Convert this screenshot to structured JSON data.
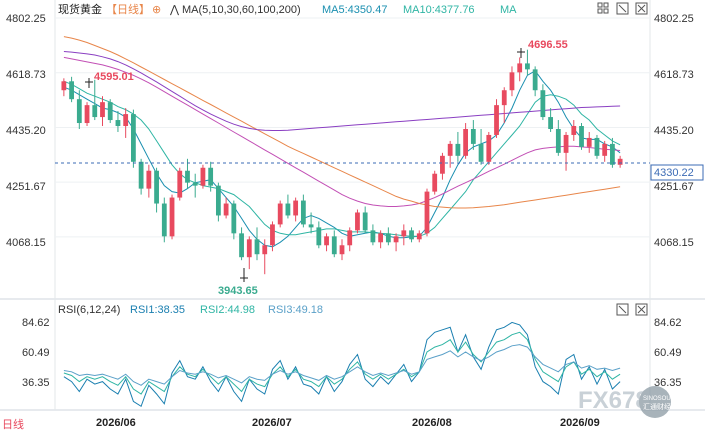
{
  "header": {
    "instrument": "现货黄金",
    "period": "【日线】",
    "ma_label": "MA(5,10,30,60,100,200)",
    "ma5": "MA5:4350.47",
    "ma10": "MA10:4377.76",
    "ma_extra": "MA"
  },
  "rsi_header": {
    "label": "RSI(6,12,24)",
    "rsi1": "RSI1:38.35",
    "rsi2": "RSI2:44.98",
    "rsi3": "RSI3:49.18"
  },
  "price_axis": [
    "4802.25",
    "4618.73",
    "4435.20",
    "4251.67",
    "4068.15"
  ],
  "rsi_axis": [
    "84.62",
    "60.49",
    "36.35"
  ],
  "left_bottom_label": "日线",
  "current_price": "4330.22",
  "annotations": {
    "high_1": "4595.01",
    "low": "3943.65",
    "high_2": "4696.55"
  },
  "date_labels": [
    "2026/06",
    "2026/07",
    "2026/08",
    "2026/09"
  ],
  "watermark": {
    "brand": "FX678",
    "line1": "SINOSOUND",
    "line2": "汇通财经"
  },
  "colors": {
    "up": "#e84a5f",
    "down": "#3aab8f",
    "ma5": "#1a8fb0",
    "ma10": "#2fb5a4",
    "ma30": "#c24fb5",
    "ma60": "#e8864a",
    "ma100": "#8a3fc2",
    "ma200": "#f0a070",
    "rsi1": "#1a7fb0",
    "rsi2": "#2fb5a4",
    "rsi3": "#5aa0c8",
    "current": "#3b6bb5"
  },
  "chart_data": {
    "type": "candlestick",
    "y_range": [
      3890,
      4802.25
    ],
    "rsi_range": [
      15,
      92
    ],
    "candles": [
      [
        4560,
        4600,
        4540,
        4590
      ],
      [
        4590,
        4605,
        4520,
        4530
      ],
      [
        4530,
        4560,
        4430,
        4450
      ],
      [
        4450,
        4520,
        4440,
        4510
      ],
      [
        4510,
        4595,
        4460,
        4470
      ],
      [
        4470,
        4540,
        4440,
        4520
      ],
      [
        4520,
        4530,
        4450,
        4460
      ],
      [
        4460,
        4490,
        4420,
        4440
      ],
      [
        4440,
        4500,
        4400,
        4480
      ],
      [
        4480,
        4495,
        4300,
        4320
      ],
      [
        4320,
        4330,
        4210,
        4230
      ],
      [
        4230,
        4310,
        4200,
        4290
      ],
      [
        4290,
        4300,
        4150,
        4180
      ],
      [
        4180,
        4200,
        4050,
        4070
      ],
      [
        4070,
        4210,
        4060,
        4200
      ],
      [
        4200,
        4300,
        4190,
        4290
      ],
      [
        4290,
        4330,
        4230,
        4250
      ],
      [
        4250,
        4280,
        4200,
        4240
      ],
      [
        4240,
        4310,
        4230,
        4300
      ],
      [
        4300,
        4320,
        4220,
        4240
      ],
      [
        4240,
        4250,
        4120,
        4140
      ],
      [
        4140,
        4200,
        4130,
        4180
      ],
      [
        4180,
        4190,
        4060,
        4080
      ],
      [
        4080,
        4100,
        3990,
        4000
      ],
      [
        4000,
        4070,
        3960,
        4060
      ],
      [
        4060,
        4100,
        3990,
        4010
      ],
      [
        4010,
        4060,
        3943,
        4040
      ],
      [
        4040,
        4120,
        4020,
        4110
      ],
      [
        4110,
        4190,
        4100,
        4180
      ],
      [
        4180,
        4210,
        4130,
        4140
      ],
      [
        4140,
        4200,
        4120,
        4190
      ],
      [
        4190,
        4210,
        4100,
        4110
      ],
      [
        4110,
        4150,
        4080,
        4100
      ],
      [
        4100,
        4120,
        4030,
        4040
      ],
      [
        4040,
        4080,
        4020,
        4070
      ],
      [
        4070,
        4090,
        4000,
        4010
      ],
      [
        4010,
        4060,
        3990,
        4040
      ],
      [
        4040,
        4100,
        4020,
        4090
      ],
      [
        4090,
        4160,
        4080,
        4150
      ],
      [
        4150,
        4170,
        4080,
        4090
      ],
      [
        4090,
        4110,
        4040,
        4050
      ],
      [
        4050,
        4090,
        4030,
        4080
      ],
      [
        4080,
        4100,
        4040,
        4050
      ],
      [
        4050,
        4080,
        4020,
        4070
      ],
      [
        4070,
        4110,
        4040,
        4090
      ],
      [
        4090,
        4100,
        4050,
        4060
      ],
      [
        4060,
        4090,
        4050,
        4080
      ],
      [
        4080,
        4230,
        4070,
        4220
      ],
      [
        4220,
        4290,
        4210,
        4280
      ],
      [
        4280,
        4350,
        4260,
        4340
      ],
      [
        4340,
        4390,
        4300,
        4380
      ],
      [
        4380,
        4420,
        4320,
        4340
      ],
      [
        4340,
        4450,
        4330,
        4430
      ],
      [
        4430,
        4460,
        4360,
        4380
      ],
      [
        4380,
        4430,
        4310,
        4320
      ],
      [
        4320,
        4420,
        4310,
        4410
      ],
      [
        4410,
        4530,
        4400,
        4510
      ],
      [
        4510,
        4570,
        4450,
        4560
      ],
      [
        4560,
        4640,
        4540,
        4620
      ],
      [
        4620,
        4670,
        4590,
        4650
      ],
      [
        4650,
        4696,
        4610,
        4630
      ],
      [
        4630,
        4640,
        4540,
        4560
      ],
      [
        4560,
        4580,
        4460,
        4470
      ],
      [
        4470,
        4500,
        4420,
        4430
      ],
      [
        4430,
        4460,
        4340,
        4350
      ],
      [
        4350,
        4420,
        4290,
        4410
      ],
      [
        4410,
        4460,
        4390,
        4440
      ],
      [
        4440,
        4450,
        4360,
        4370
      ],
      [
        4370,
        4420,
        4350,
        4400
      ],
      [
        4400,
        4410,
        4330,
        4340
      ],
      [
        4340,
        4390,
        4320,
        4380
      ],
      [
        4380,
        4400,
        4300,
        4310
      ],
      [
        4310,
        4340,
        4300,
        4330
      ]
    ],
    "ma_series": [
      {
        "key": "ma5",
        "values": [
          4570,
          4560,
          4545,
          4530,
          4515,
          4500,
          4495,
          4485,
          4470,
          4430,
          4380,
          4330,
          4280,
          4240,
          4220,
          4215,
          4230,
          4250,
          4255,
          4260,
          4230,
          4200,
          4170,
          4130,
          4090,
          4060,
          4040,
          4035,
          4050,
          4070,
          4100,
          4130,
          4140,
          4130,
          4115,
          4100,
          4080,
          4070,
          4075,
          4080,
          4085,
          4080,
          4070,
          4065,
          4065,
          4068,
          4070,
          4100,
          4150,
          4200,
          4260,
          4310,
          4350,
          4370,
          4380,
          4390,
          4410,
          4450,
          4500,
          4560,
          4610,
          4625,
          4590,
          4560,
          4520,
          4470,
          4430,
          4400,
          4395,
          4395,
          4380,
          4370,
          4350
        ]
      },
      {
        "key": "ma10",
        "values": [
          4590,
          4580,
          4565,
          4550,
          4540,
          4530,
          4520,
          4505,
          4495,
          4480,
          4460,
          4430,
          4390,
          4350,
          4310,
          4280,
          4260,
          4250,
          4240,
          4235,
          4230,
          4220,
          4210,
          4190,
          4170,
          4140,
          4110,
          4090,
          4080,
          4075,
          4075,
          4080,
          4085,
          4090,
          4095,
          4095,
          4090,
          4085,
          4085,
          4085,
          4082,
          4080,
          4078,
          4075,
          4072,
          4070,
          4070,
          4080,
          4100,
          4130,
          4160,
          4190,
          4220,
          4260,
          4290,
          4320,
          4350,
          4380,
          4410,
          4440,
          4480,
          4520,
          4540,
          4545,
          4540,
          4530,
          4510,
          4480,
          4460,
          4430,
          4410,
          4390,
          4377
        ]
      },
      {
        "key": "ma30",
        "values": [
          4670,
          4665,
          4660,
          4655,
          4650,
          4645,
          4638,
          4630,
          4620,
          4610,
          4598,
          4585,
          4570,
          4555,
          4540,
          4525,
          4510,
          4495,
          4480,
          4465,
          4450,
          4435,
          4420,
          4405,
          4390,
          4375,
          4360,
          4345,
          4330,
          4315,
          4300,
          4285,
          4270,
          4255,
          4240,
          4225,
          4210,
          4198,
          4188,
          4180,
          4175,
          4172,
          4170,
          4170,
          4172,
          4175,
          4180,
          4190,
          4200,
          4212,
          4225,
          4238,
          4250,
          4262,
          4275,
          4288,
          4300,
          4312,
          4325,
          4338,
          4350,
          4360,
          4365,
          4368,
          4370,
          4372,
          4372,
          4370,
          4368,
          4365,
          4362,
          4360,
          4358
        ]
      },
      {
        "key": "ma60",
        "values": [
          4740,
          4735,
          4728,
          4720,
          4710,
          4700,
          4690,
          4678,
          4665,
          4652,
          4638,
          4624,
          4610,
          4596,
          4582,
          4568,
          4554,
          4540,
          4526,
          4512,
          4498,
          4484,
          4470,
          4456,
          4442,
          4428,
          4414,
          4400,
          4386,
          4372,
          4360,
          4348,
          4336,
          4324,
          4312,
          4300,
          4288,
          4276,
          4264,
          4252,
          4240,
          4228,
          4216,
          4204,
          4195,
          4188,
          4180,
          4175,
          4170,
          4168,
          4166,
          4165,
          4165,
          4166,
          4168,
          4170,
          4173,
          4176,
          4180,
          4184,
          4188,
          4192,
          4196,
          4200,
          4204,
          4208,
          4212,
          4216,
          4220,
          4224,
          4228,
          4232,
          4236
        ]
      },
      {
        "key": "ma100",
        "values": [
          4690,
          4688,
          4685,
          4682,
          4678,
          4672,
          4665,
          4656,
          4645,
          4632,
          4618,
          4603,
          4588,
          4572,
          4556,
          4540,
          4524,
          4508,
          4494,
          4480,
          4468,
          4456,
          4446,
          4438,
          4432,
          4428,
          4426,
          4425,
          4425,
          4426,
          4428,
          4430,
          4432,
          4434,
          4436,
          4438,
          4440,
          4442,
          4444,
          4446,
          4448,
          4450,
          4452,
          4454,
          4456,
          4458,
          4460,
          4462,
          4464,
          4466,
          4468,
          4470,
          4472,
          4474,
          4476,
          4478,
          4480,
          4482,
          4484,
          4486,
          4488,
          4490,
          4492,
          4494,
          4496,
          4498,
          4500,
          4502,
          4503,
          4504,
          4505,
          4506,
          4507
        ]
      }
    ],
    "rsi_series": [
      {
        "key": "rsi1",
        "values": [
          42,
          38,
          30,
          40,
          36,
          38,
          32,
          28,
          40,
          22,
          18,
          35,
          28,
          20,
          45,
          55,
          42,
          40,
          50,
          38,
          30,
          42,
          30,
          22,
          40,
          32,
          28,
          48,
          55,
          40,
          50,
          36,
          34,
          28,
          42,
          30,
          38,
          52,
          60,
          40,
          34,
          42,
          36,
          44,
          52,
          38,
          46,
          72,
          78,
          80,
          82,
          62,
          76,
          58,
          48,
          66,
          80,
          82,
          86,
          84,
          76,
          50,
          38,
          34,
          28,
          56,
          60,
          40,
          50,
          36,
          48,
          32,
          38
        ]
      },
      {
        "key": "rsi2",
        "values": [
          45,
          43,
          38,
          42,
          40,
          42,
          38,
          35,
          42,
          32,
          28,
          38,
          34,
          30,
          42,
          50,
          44,
          42,
          48,
          42,
          36,
          42,
          36,
          30,
          40,
          36,
          34,
          44,
          50,
          42,
          48,
          40,
          38,
          34,
          42,
          36,
          40,
          48,
          54,
          44,
          40,
          44,
          40,
          44,
          48,
          42,
          46,
          62,
          66,
          68,
          72,
          62,
          70,
          60,
          54,
          62,
          70,
          72,
          76,
          78,
          72,
          56,
          46,
          42,
          38,
          50,
          54,
          44,
          48,
          42,
          46,
          40,
          44
        ]
      },
      {
        "key": "rsi3",
        "values": [
          47,
          46,
          43,
          44,
          43,
          44,
          42,
          40,
          44,
          38,
          35,
          40,
          38,
          36,
          42,
          47,
          45,
          44,
          46,
          44,
          41,
          43,
          40,
          37,
          42,
          40,
          39,
          44,
          47,
          44,
          46,
          43,
          41,
          39,
          43,
          40,
          42,
          46,
          50,
          46,
          43,
          45,
          43,
          45,
          47,
          44,
          46,
          56,
          58,
          60,
          63,
          58,
          62,
          58,
          55,
          58,
          62,
          64,
          67,
          68,
          66,
          58,
          52,
          49,
          46,
          52,
          54,
          49,
          51,
          48,
          49,
          47,
          49
        ]
      }
    ]
  }
}
